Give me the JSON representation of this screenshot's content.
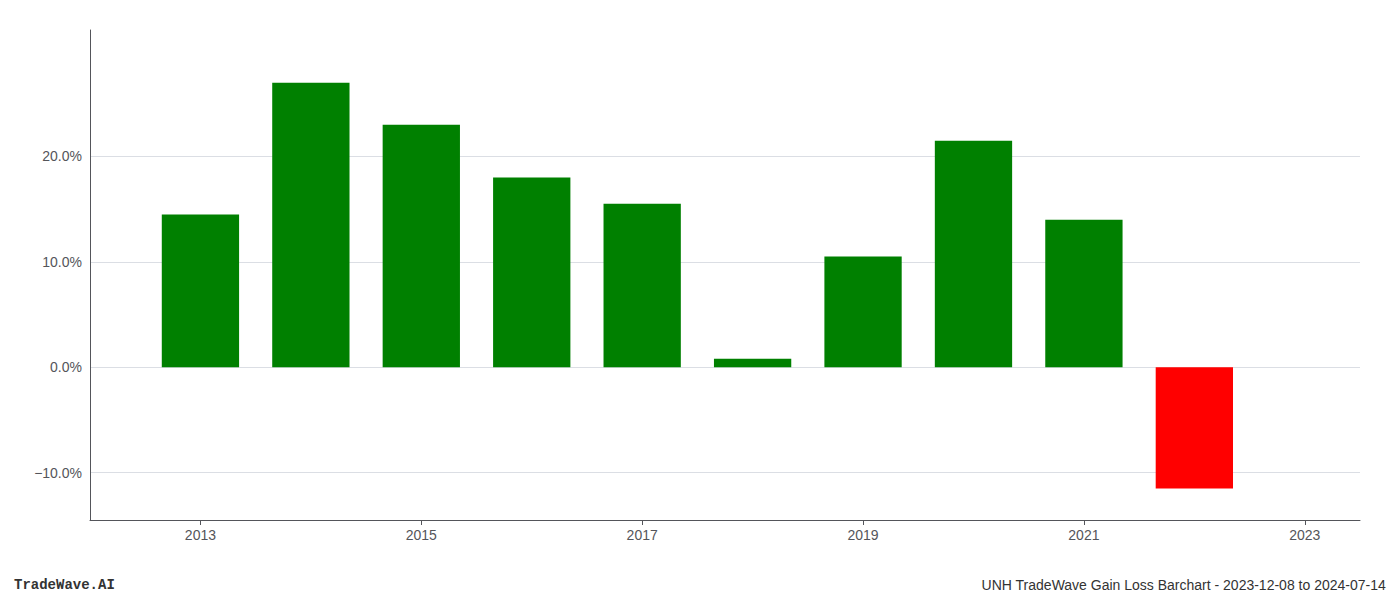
{
  "chart_data": {
    "type": "bar",
    "x": [
      2013,
      2014,
      2015,
      2016,
      2017,
      2018,
      2019,
      2020,
      2021,
      2022
    ],
    "values": [
      0.145,
      0.27,
      0.23,
      0.18,
      0.155,
      0.008,
      0.105,
      0.215,
      0.14,
      -0.115
    ],
    "colors": [
      "#008000",
      "#008000",
      "#008000",
      "#008000",
      "#008000",
      "#008000",
      "#008000",
      "#008000",
      "#008000",
      "#ff0000"
    ],
    "xlim": [
      2012.0,
      2023.5
    ],
    "xticks": [
      2013,
      2015,
      2017,
      2019,
      2021,
      2023
    ],
    "ylim": [
      -0.145,
      0.32
    ],
    "yticks": [
      {
        "value": -0.1,
        "label": "−10.0%"
      },
      {
        "value": 0.0,
        "label": "0.0%"
      },
      {
        "value": 0.1,
        "label": "10.0%"
      },
      {
        "value": 0.2,
        "label": "20.0%"
      }
    ],
    "grid": true,
    "annotations": [
      "TradeWave.AI",
      "UNH TradeWave Gain Loss Barchart - 2023-12-08 to 2024-07-14"
    ]
  }
}
